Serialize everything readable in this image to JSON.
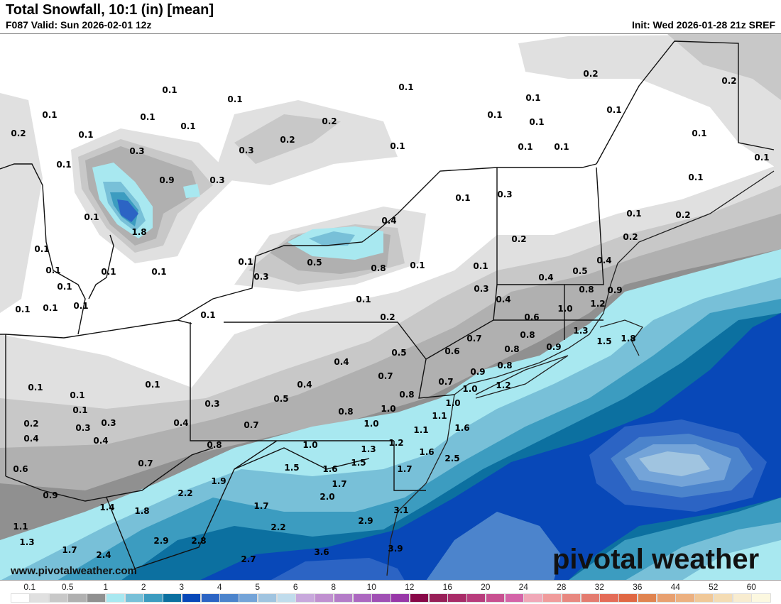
{
  "header": {
    "title": "Total Snowfall, 10:1 (in) [mean]",
    "valid": "F087 Valid: Sun 2026-02-01 12z",
    "init": "Init: Wed 2026-01-28 21z SREF"
  },
  "branding": {
    "website": "www.pivotalweather.com",
    "logo": "pivotal weather"
  },
  "map": {
    "variable": "Total Snowfall, 10:1",
    "units": "in",
    "point_values": [
      "0.1",
      "0.1",
      "0.1",
      "0.2",
      "0.2",
      "0.1",
      "0.1",
      "0.1",
      "0.2",
      "0.1",
      "0.1",
      "0.1",
      "0.1",
      "0.2",
      "0.1",
      "0.2",
      "0.3",
      "0.3",
      "0.1",
      "0.1",
      "0.1",
      "0.1",
      "0.1",
      "0.1",
      "0.9",
      "0.3",
      "0.1",
      "0.3",
      "0.1",
      "0.1",
      "0.4",
      "0.1",
      "0.2",
      "1.8",
      "0.2",
      "0.2",
      "0.1",
      "0.1",
      "0.5",
      "0.8",
      "0.1",
      "0.1",
      "0.4",
      "0.5",
      "0.4",
      "0.1",
      "0.1",
      "0.1",
      "0.3",
      "0.8",
      "0.9",
      "0.1",
      "0.3",
      "0.4",
      "1.0",
      "1.2",
      "0.1",
      "0.1",
      "0.1",
      "0.1",
      "0.6",
      "0.1",
      "0.2",
      "1.3",
      "0.7",
      "0.8",
      "1.5",
      "1.8",
      "0.5",
      "0.6",
      "0.8",
      "0.9",
      "0.4",
      "0.8",
      "0.9",
      "0.7",
      "0.7",
      "1.2",
      "0.1",
      "0.1",
      "0.4",
      "1.0",
      "0.1",
      "0.5",
      "1.0",
      "0.1",
      "0.3",
      "0.8",
      "0.8",
      "1.0",
      "1.1",
      "0.2",
      "0.3",
      "0.3",
      "0.4",
      "0.7",
      "1.0",
      "1.1",
      "1.6",
      "0.4",
      "0.4",
      "0.8",
      "1.0",
      "1.2",
      "1.3",
      "1.6",
      "0.7",
      "1.5",
      "1.6",
      "1.5",
      "2.5",
      "0.6",
      "1.7",
      "1.7",
      "1.9",
      "2.2",
      "2.0",
      "0.9",
      "1.4",
      "1.8",
      "1.7",
      "3.1",
      "1.1",
      "2.2",
      "2.9",
      "1.3",
      "2.9",
      "2.8",
      "1.7",
      "2.4",
      "2.7",
      "3.6",
      "3.9"
    ]
  },
  "colorbar": {
    "labels": [
      "0.1",
      "0.5",
      "1",
      "2",
      "3",
      "4",
      "5",
      "6",
      "8",
      "10",
      "12",
      "16",
      "20",
      "24",
      "28",
      "32",
      "36",
      "44",
      "52",
      "60"
    ],
    "colors": [
      "#ffffff",
      "#e0e0e0",
      "#c8c8c8",
      "#b0b0b0",
      "#909090",
      "#a8e8f0",
      "#78c0d8",
      "#3c9cc0",
      "#0c70a0",
      "#0848b8",
      "#2c64c4",
      "#4c84cc",
      "#74a4d8",
      "#a0c4e0",
      "#c0dcec",
      "#c8a8dc",
      "#c090d0",
      "#b47cc8",
      "#ac68c0",
      "#a050b4",
      "#9838a8",
      "#880848",
      "#982058",
      "#a82c68",
      "#b83c7c",
      "#c85090",
      "#d464a8",
      "#f0a8b8",
      "#f09c9c",
      "#e88880",
      "#e47c70",
      "#e46c58",
      "#e06844",
      "#e08450",
      "#e8a070",
      "#ecb080",
      "#f0c898",
      "#f4dcb4",
      "#f8ecd0",
      "#fcf8e0"
    ]
  }
}
